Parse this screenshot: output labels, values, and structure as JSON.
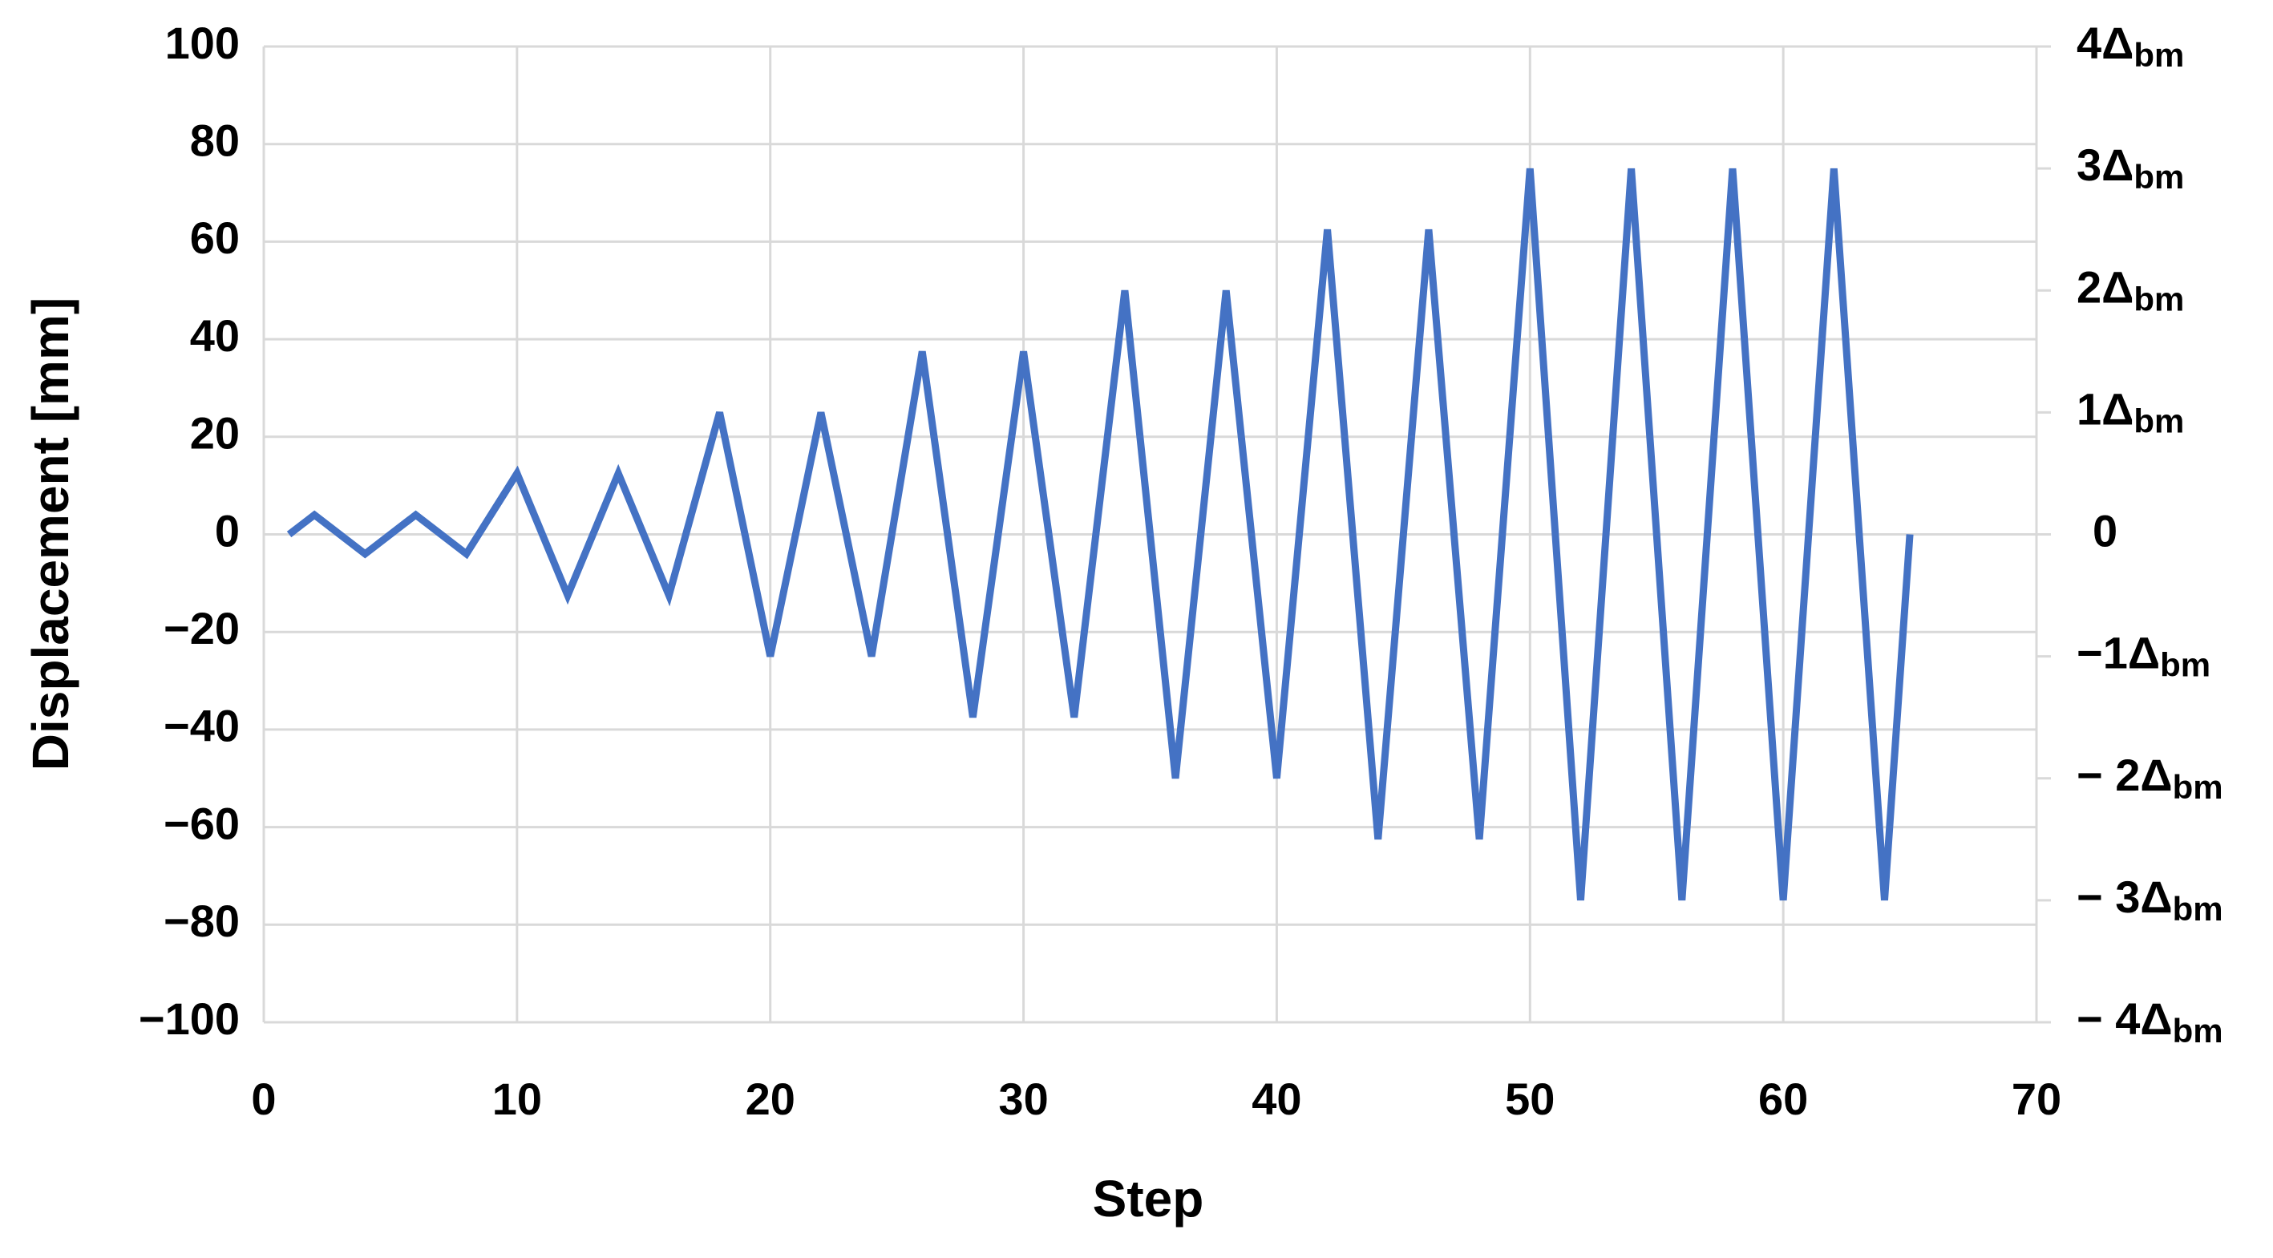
{
  "chart_data": {
    "type": "line",
    "x_label": "Step",
    "y_label": "Displacement [mm]",
    "x": [
      1,
      2,
      4,
      6,
      8,
      10,
      12,
      14,
      16,
      18,
      20,
      22,
      24,
      26,
      28,
      30,
      32,
      34,
      36,
      38,
      40,
      42,
      44,
      46,
      48,
      50,
      52,
      54,
      56,
      58,
      60,
      62,
      64,
      65
    ],
    "values": [
      0,
      4,
      -4,
      4,
      -4,
      12.5,
      -12.5,
      12.5,
      -12.5,
      25,
      -25,
      25,
      -25,
      37.5,
      -37.5,
      37.5,
      -37.5,
      50,
      -50,
      50,
      -50,
      62.5,
      -62.5,
      62.5,
      -62.5,
      75,
      -75,
      75,
      -75,
      75,
      -75,
      75,
      -75,
      0
    ],
    "color": "#4472c4",
    "xlim": [
      0,
      70
    ],
    "xticks": [
      0,
      10,
      20,
      30,
      40,
      50,
      60,
      70
    ],
    "ylim": [
      -100,
      100
    ],
    "yticks": [
      {
        "value": -100,
        "label": "−100"
      },
      {
        "value": -80,
        "label": "−80"
      },
      {
        "value": -60,
        "label": "−60"
      },
      {
        "value": -40,
        "label": "−40"
      },
      {
        "value": -20,
        "label": "−20"
      },
      0,
      20,
      40,
      60,
      80,
      100
    ],
    "y2lim": [
      -4,
      4
    ],
    "y2ticks": [
      {
        "value": -4,
        "label": "− 4Δ",
        "subscript": "bm"
      },
      {
        "value": -3,
        "label": "− 3Δ",
        "subscript": "bm"
      },
      {
        "value": -2,
        "label": "− 2Δ",
        "subscript": "bm"
      },
      {
        "value": -1,
        "label": "−1Δ",
        "subscript": "bm"
      },
      0,
      {
        "value": 1,
        "label": "1Δ",
        "subscript": "bm"
      },
      {
        "value": 2,
        "label": "2Δ",
        "subscript": "bm"
      },
      {
        "value": 3,
        "label": "3Δ",
        "subscript": "bm"
      },
      {
        "value": 4,
        "label": "4Δ",
        "subscript": "bm"
      }
    ],
    "grid": true
  }
}
